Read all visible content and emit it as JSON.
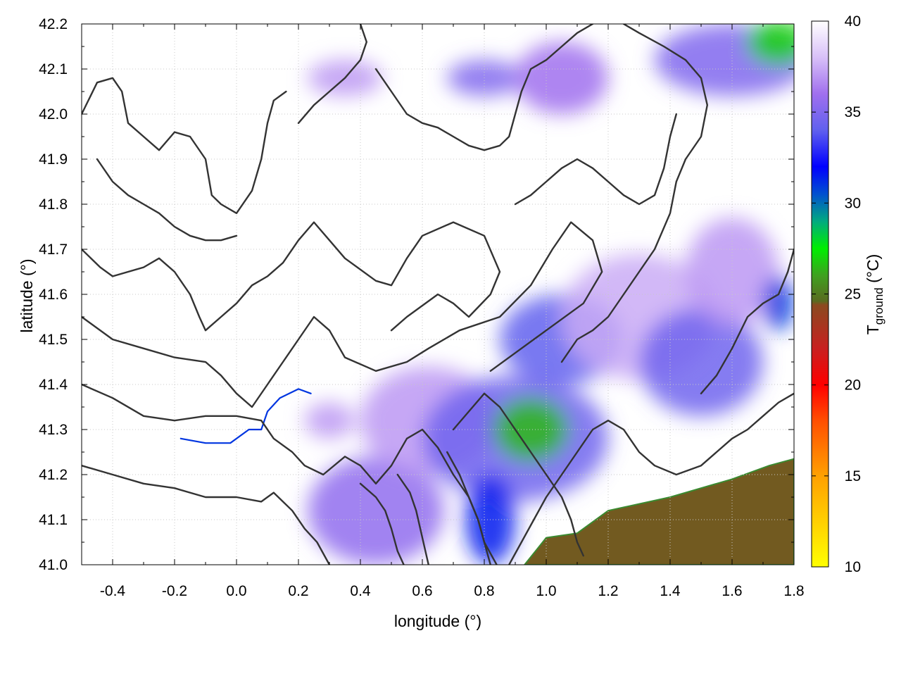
{
  "chart_data": {
    "type": "heatmap",
    "title": "",
    "xlabel": "longitude (°)",
    "ylabel": "latitude (°)",
    "xlim": [
      -0.5,
      1.8
    ],
    "ylim": [
      41.0,
      42.2
    ],
    "x_ticks": [
      -0.4,
      -0.2,
      0.0,
      0.2,
      0.4,
      0.6,
      0.8,
      1.0,
      1.2,
      1.4,
      1.6,
      1.8
    ],
    "x_tick_labels": [
      "-0.4",
      "-0.2",
      "0.0",
      "0.2",
      "0.4",
      "0.6",
      "0.8",
      "1.0",
      "1.2",
      "1.4",
      "1.6",
      "1.8"
    ],
    "y_ticks": [
      41.0,
      41.1,
      41.2,
      41.3,
      41.4,
      41.5,
      41.6,
      41.7,
      41.8,
      41.9,
      42.0,
      42.1,
      42.2
    ],
    "y_tick_labels": [
      "41.0",
      "41.1",
      "41.2",
      "41.3",
      "41.4",
      "41.5",
      "41.6",
      "41.7",
      "41.8",
      "41.9",
      "42.0",
      "42.1",
      "42.2"
    ],
    "grid": true,
    "colorbar": {
      "label_main": "T",
      "label_sub": "ground",
      "label_unit": " (°C)",
      "range": [
        10,
        40
      ],
      "ticks": [
        10,
        15,
        20,
        25,
        30,
        35,
        40
      ],
      "tick_labels": [
        "10",
        "15",
        "20",
        "25",
        "30",
        "35",
        "40"
      ],
      "gradient_stops": [
        {
          "value": 10,
          "color": "#ffff00"
        },
        {
          "value": 15,
          "color": "#ffa000"
        },
        {
          "value": 18,
          "color": "#ff5000"
        },
        {
          "value": 20,
          "color": "#ff0000"
        },
        {
          "value": 22,
          "color": "#c82020"
        },
        {
          "value": 24.4,
          "color": "#8a4a20"
        },
        {
          "value": 24.6,
          "color": "#5a6a20"
        },
        {
          "value": 26,
          "color": "#40a020"
        },
        {
          "value": 27.5,
          "color": "#00ee00"
        },
        {
          "value": 29,
          "color": "#00aa80"
        },
        {
          "value": 30.5,
          "color": "#0050d0"
        },
        {
          "value": 32,
          "color": "#0000ff"
        },
        {
          "value": 34,
          "color": "#6060ee"
        },
        {
          "value": 36,
          "color": "#a070ee"
        },
        {
          "value": 38,
          "color": "#d8c0f8"
        },
        {
          "value": 40,
          "color": "#ffffff"
        }
      ]
    },
    "field_blobs": [
      {
        "lon": 0.45,
        "lat": 41.12,
        "rx": 0.22,
        "ry": 0.12,
        "value": 35.5
      },
      {
        "lon": 0.62,
        "lat": 41.32,
        "rx": 0.22,
        "ry": 0.12,
        "value": 37
      },
      {
        "lon": 0.9,
        "lat": 41.28,
        "rx": 0.3,
        "ry": 0.14,
        "value": 34.5
      },
      {
        "lon": 0.95,
        "lat": 41.3,
        "rx": 0.12,
        "ry": 0.07,
        "value": 26.5
      },
      {
        "lon": 0.82,
        "lat": 41.1,
        "rx": 0.08,
        "ry": 0.1,
        "value": 31.5
      },
      {
        "lon": 1.05,
        "lat": 41.5,
        "rx": 0.2,
        "ry": 0.1,
        "value": 34
      },
      {
        "lon": 1.3,
        "lat": 41.55,
        "rx": 0.25,
        "ry": 0.14,
        "value": 37.5
      },
      {
        "lon": 1.5,
        "lat": 41.45,
        "rx": 0.2,
        "ry": 0.12,
        "value": 34.5
      },
      {
        "lon": 1.6,
        "lat": 41.65,
        "rx": 0.15,
        "ry": 0.12,
        "value": 37
      },
      {
        "lon": 1.75,
        "lat": 41.58,
        "rx": 0.05,
        "ry": 0.06,
        "value": 31
      },
      {
        "lon": 1.6,
        "lat": 42.12,
        "rx": 0.25,
        "ry": 0.08,
        "value": 35
      },
      {
        "lon": 1.75,
        "lat": 42.16,
        "rx": 0.1,
        "ry": 0.05,
        "value": 27
      },
      {
        "lon": 0.8,
        "lat": 42.08,
        "rx": 0.12,
        "ry": 0.04,
        "value": 35
      },
      {
        "lon": 1.05,
        "lat": 42.08,
        "rx": 0.15,
        "ry": 0.08,
        "value": 36
      },
      {
        "lon": 0.35,
        "lat": 42.08,
        "rx": 0.12,
        "ry": 0.04,
        "value": 37
      },
      {
        "lon": 0.3,
        "lat": 41.32,
        "rx": 0.08,
        "ry": 0.04,
        "value": 37
      }
    ],
    "sea_region": {
      "value": 24.5,
      "outline": [
        {
          "lon": 0.93,
          "lat": 41.0
        },
        {
          "lon": 1.0,
          "lat": 41.06
        },
        {
          "lon": 1.1,
          "lat": 41.07
        },
        {
          "lon": 1.2,
          "lat": 41.12
        },
        {
          "lon": 1.4,
          "lat": 41.15
        },
        {
          "lon": 1.6,
          "lat": 41.19
        },
        {
          "lon": 1.72,
          "lat": 41.22
        },
        {
          "lon": 1.8,
          "lat": 41.235
        },
        {
          "lon": 1.8,
          "lat": 41.0
        }
      ]
    },
    "river": [
      {
        "lon": -0.18,
        "lat": 41.28
      },
      {
        "lon": -0.1,
        "lat": 41.27
      },
      {
        "lon": -0.02,
        "lat": 41.27
      },
      {
        "lon": 0.04,
        "lat": 41.3
      },
      {
        "lon": 0.08,
        "lat": 41.3
      },
      {
        "lon": 0.1,
        "lat": 41.34
      },
      {
        "lon": 0.14,
        "lat": 41.37
      },
      {
        "lon": 0.2,
        "lat": 41.39
      },
      {
        "lon": 0.24,
        "lat": 41.38
      }
    ],
    "contours": [
      [
        [
          -0.5,
          42.0
        ],
        [
          -0.45,
          42.07
        ],
        [
          -0.4,
          42.08
        ],
        [
          -0.37,
          42.05
        ],
        [
          -0.35,
          41.98
        ],
        [
          -0.3,
          41.95
        ],
        [
          -0.25,
          41.92
        ],
        [
          -0.2,
          41.96
        ],
        [
          -0.15,
          41.95
        ],
        [
          -0.1,
          41.9
        ],
        [
          -0.08,
          41.82
        ],
        [
          -0.05,
          41.8
        ],
        [
          0.0,
          41.78
        ],
        [
          0.05,
          41.83
        ],
        [
          0.08,
          41.9
        ],
        [
          0.1,
          41.98
        ],
        [
          0.12,
          42.03
        ],
        [
          0.16,
          42.05
        ]
      ],
      [
        [
          -0.5,
          41.7
        ],
        [
          -0.44,
          41.66
        ],
        [
          -0.4,
          41.64
        ],
        [
          -0.3,
          41.66
        ],
        [
          -0.25,
          41.68
        ],
        [
          -0.2,
          41.65
        ],
        [
          -0.15,
          41.6
        ],
        [
          -0.12,
          41.55
        ],
        [
          -0.1,
          41.52
        ],
        [
          -0.05,
          41.55
        ],
        [
          0.0,
          41.58
        ],
        [
          0.05,
          41.62
        ],
        [
          0.1,
          41.64
        ],
        [
          0.15,
          41.67
        ],
        [
          0.2,
          41.72
        ],
        [
          0.25,
          41.76
        ],
        [
          0.3,
          41.72
        ],
        [
          0.35,
          41.68
        ],
        [
          0.45,
          41.63
        ],
        [
          0.5,
          41.62
        ],
        [
          0.55,
          41.68
        ],
        [
          0.6,
          41.73
        ],
        [
          0.7,
          41.76
        ],
        [
          0.8,
          41.73
        ],
        [
          0.85,
          41.65
        ],
        [
          0.82,
          41.6
        ],
        [
          0.75,
          41.55
        ],
        [
          0.7,
          41.58
        ],
        [
          0.65,
          41.6
        ],
        [
          0.55,
          41.55
        ],
        [
          0.5,
          41.52
        ]
      ],
      [
        [
          -0.5,
          41.55
        ],
        [
          -0.4,
          41.5
        ],
        [
          -0.3,
          41.48
        ],
        [
          -0.2,
          41.46
        ],
        [
          -0.1,
          41.45
        ],
        [
          -0.05,
          41.42
        ],
        [
          0.0,
          41.38
        ],
        [
          0.05,
          41.35
        ],
        [
          0.1,
          41.4
        ],
        [
          0.15,
          41.45
        ],
        [
          0.2,
          41.5
        ],
        [
          0.25,
          41.55
        ],
        [
          0.3,
          41.52
        ],
        [
          0.35,
          41.46
        ],
        [
          0.45,
          41.43
        ],
        [
          0.55,
          41.45
        ],
        [
          0.62,
          41.48
        ],
        [
          0.72,
          41.52
        ],
        [
          0.85,
          41.55
        ],
        [
          0.95,
          41.62
        ],
        [
          1.02,
          41.7
        ],
        [
          1.08,
          41.76
        ],
        [
          1.15,
          41.72
        ],
        [
          1.18,
          41.65
        ],
        [
          1.12,
          41.58
        ],
        [
          1.0,
          41.52
        ],
        [
          0.9,
          41.47
        ],
        [
          0.82,
          41.43
        ]
      ],
      [
        [
          -0.5,
          41.4
        ],
        [
          -0.4,
          41.37
        ],
        [
          -0.3,
          41.33
        ],
        [
          -0.2,
          41.32
        ],
        [
          -0.1,
          41.33
        ],
        [
          0.0,
          41.33
        ],
        [
          0.08,
          41.32
        ],
        [
          0.12,
          41.28
        ],
        [
          0.18,
          41.25
        ],
        [
          0.22,
          41.22
        ],
        [
          0.28,
          41.2
        ],
        [
          0.35,
          41.24
        ],
        [
          0.4,
          41.22
        ],
        [
          0.45,
          41.18
        ],
        [
          0.5,
          41.22
        ],
        [
          0.55,
          41.28
        ],
        [
          0.6,
          41.3
        ],
        [
          0.65,
          41.26
        ],
        [
          0.7,
          41.2
        ],
        [
          0.75,
          41.15
        ],
        [
          0.78,
          41.1
        ],
        [
          0.8,
          41.05
        ],
        [
          0.82,
          41.0
        ]
      ],
      [
        [
          -0.5,
          41.22
        ],
        [
          -0.4,
          41.2
        ],
        [
          -0.3,
          41.18
        ],
        [
          -0.2,
          41.17
        ],
        [
          -0.1,
          41.15
        ],
        [
          0.0,
          41.15
        ],
        [
          0.08,
          41.14
        ],
        [
          0.12,
          41.16
        ],
        [
          0.18,
          41.12
        ],
        [
          0.22,
          41.08
        ],
        [
          0.26,
          41.05
        ],
        [
          0.3,
          41.0
        ]
      ],
      [
        [
          0.4,
          41.18
        ],
        [
          0.45,
          41.15
        ],
        [
          0.48,
          41.12
        ],
        [
          0.5,
          41.08
        ],
        [
          0.52,
          41.03
        ],
        [
          0.54,
          41.0
        ]
      ],
      [
        [
          0.52,
          41.2
        ],
        [
          0.56,
          41.16
        ],
        [
          0.58,
          41.12
        ],
        [
          0.6,
          41.06
        ],
        [
          0.62,
          41.0
        ]
      ],
      [
        [
          0.7,
          41.3
        ],
        [
          0.75,
          41.34
        ],
        [
          0.8,
          41.38
        ],
        [
          0.85,
          41.35
        ],
        [
          0.9,
          41.3
        ],
        [
          0.95,
          41.25
        ],
        [
          1.0,
          41.2
        ],
        [
          1.05,
          41.15
        ],
        [
          1.08,
          41.1
        ],
        [
          1.1,
          41.05
        ],
        [
          1.12,
          41.02
        ]
      ],
      [
        [
          0.68,
          41.25
        ],
        [
          0.72,
          41.2
        ],
        [
          0.75,
          41.15
        ],
        [
          0.78,
          41.1
        ],
        [
          0.8,
          41.05
        ],
        [
          0.84,
          41.0
        ]
      ],
      [
        [
          0.88,
          41.0
        ],
        [
          0.92,
          41.05
        ],
        [
          0.96,
          41.1
        ],
        [
          1.0,
          41.15
        ],
        [
          1.05,
          41.2
        ],
        [
          1.1,
          41.25
        ],
        [
          1.15,
          41.3
        ],
        [
          1.2,
          41.32
        ],
        [
          1.25,
          41.3
        ],
        [
          1.3,
          41.25
        ],
        [
          1.35,
          41.22
        ],
        [
          1.42,
          41.2
        ],
        [
          1.5,
          41.22
        ],
        [
          1.55,
          41.25
        ],
        [
          1.6,
          41.28
        ],
        [
          1.65,
          41.3
        ],
        [
          1.7,
          41.33
        ],
        [
          1.75,
          41.36
        ],
        [
          1.8,
          41.38
        ]
      ],
      [
        [
          1.05,
          41.45
        ],
        [
          1.1,
          41.5
        ],
        [
          1.15,
          41.52
        ],
        [
          1.2,
          41.55
        ],
        [
          1.25,
          41.6
        ],
        [
          1.3,
          41.65
        ],
        [
          1.35,
          41.7
        ],
        [
          1.4,
          41.78
        ],
        [
          1.42,
          41.85
        ],
        [
          1.45,
          41.9
        ],
        [
          1.5,
          41.95
        ],
        [
          1.52,
          42.02
        ],
        [
          1.5,
          42.08
        ],
        [
          1.45,
          42.12
        ],
        [
          1.38,
          42.15
        ],
        [
          1.3,
          42.18
        ],
        [
          1.25,
          42.2
        ]
      ],
      [
        [
          1.5,
          41.38
        ],
        [
          1.55,
          41.42
        ],
        [
          1.6,
          41.48
        ],
        [
          1.65,
          41.55
        ],
        [
          1.7,
          41.58
        ],
        [
          1.75,
          41.6
        ],
        [
          1.78,
          41.65
        ],
        [
          1.8,
          41.7
        ]
      ],
      [
        [
          0.45,
          42.1
        ],
        [
          0.5,
          42.05
        ],
        [
          0.55,
          42.0
        ],
        [
          0.6,
          41.98
        ],
        [
          0.65,
          41.97
        ],
        [
          0.7,
          41.95
        ],
        [
          0.75,
          41.93
        ],
        [
          0.8,
          41.92
        ],
        [
          0.85,
          41.93
        ],
        [
          0.88,
          41.95
        ],
        [
          0.9,
          42.0
        ],
        [
          0.92,
          42.05
        ],
        [
          0.95,
          42.1
        ],
        [
          1.0,
          42.12
        ],
        [
          1.05,
          42.15
        ],
        [
          1.1,
          42.18
        ],
        [
          1.15,
          42.2
        ]
      ],
      [
        [
          0.2,
          41.98
        ],
        [
          0.25,
          42.02
        ],
        [
          0.3,
          42.05
        ],
        [
          0.35,
          42.08
        ],
        [
          0.4,
          42.12
        ],
        [
          0.42,
          42.16
        ],
        [
          0.4,
          42.2
        ]
      ],
      [
        [
          -0.45,
          41.9
        ],
        [
          -0.4,
          41.85
        ],
        [
          -0.35,
          41.82
        ],
        [
          -0.3,
          41.8
        ],
        [
          -0.25,
          41.78
        ],
        [
          -0.2,
          41.75
        ],
        [
          -0.15,
          41.73
        ],
        [
          -0.1,
          41.72
        ],
        [
          -0.05,
          41.72
        ],
        [
          0.0,
          41.73
        ]
      ],
      [
        [
          0.9,
          41.8
        ],
        [
          0.95,
          41.82
        ],
        [
          1.0,
          41.85
        ],
        [
          1.05,
          41.88
        ],
        [
          1.1,
          41.9
        ],
        [
          1.15,
          41.88
        ],
        [
          1.2,
          41.85
        ],
        [
          1.25,
          41.82
        ],
        [
          1.3,
          41.8
        ],
        [
          1.35,
          41.82
        ],
        [
          1.38,
          41.88
        ],
        [
          1.4,
          41.95
        ],
        [
          1.42,
          42.0
        ]
      ]
    ]
  }
}
